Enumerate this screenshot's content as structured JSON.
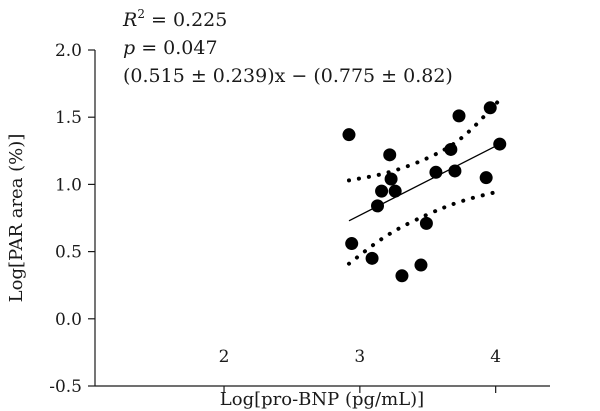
{
  "chart_data": {
    "type": "scatter",
    "xlabel": "Log[pro-BNP (pg/mL)]",
    "ylabel": "Log[PAR area (%)]",
    "xlim": [
      1.05,
      4.4
    ],
    "ylim": [
      -0.5,
      2.0
    ],
    "x_ticks": [
      "2",
      "3",
      "4"
    ],
    "x_tick_values": [
      2,
      3,
      4
    ],
    "y_ticks": [
      "2.0",
      "1.5",
      "1.0",
      "0.5",
      "0.0",
      "-0.5"
    ],
    "y_tick_values": [
      2.0,
      1.5,
      1.0,
      0.5,
      0.0,
      -0.5
    ],
    "annotations": {
      "r2_symbol": "R",
      "r2_superscript": "2",
      "r2_value": " = 0.225",
      "p_symbol": "p",
      "p_value": " = 0.047",
      "equation": "(0.515 ± 0.239)x − (0.775 ± 0.82)"
    },
    "series": [
      {
        "points": [
          {
            "x": 2.92,
            "y": 1.37
          },
          {
            "x": 2.94,
            "y": 0.56
          },
          {
            "x": 3.09,
            "y": 0.45
          },
          {
            "x": 3.13,
            "y": 0.84
          },
          {
            "x": 3.16,
            "y": 0.95
          },
          {
            "x": 3.22,
            "y": 1.22
          },
          {
            "x": 3.23,
            "y": 1.04
          },
          {
            "x": 3.26,
            "y": 0.95
          },
          {
            "x": 3.31,
            "y": 0.32
          },
          {
            "x": 3.45,
            "y": 0.4
          },
          {
            "x": 3.49,
            "y": 0.71
          },
          {
            "x": 3.56,
            "y": 1.09
          },
          {
            "x": 3.67,
            "y": 1.26
          },
          {
            "x": 3.7,
            "y": 1.1
          },
          {
            "x": 3.73,
            "y": 1.51
          },
          {
            "x": 3.93,
            "y": 1.05
          },
          {
            "x": 3.96,
            "y": 1.57
          },
          {
            "x": 4.03,
            "y": 1.3
          }
        ]
      }
    ],
    "fit_line": {
      "slope": 0.515,
      "intercept": -0.775,
      "x_range": [
        2.92,
        4.03
      ]
    },
    "confidence_band": {
      "upper": [
        [
          2.92,
          1.03
        ],
        [
          3.2,
          1.08
        ],
        [
          3.5,
          1.19
        ],
        [
          3.75,
          1.33
        ],
        [
          4.03,
          1.63
        ]
      ],
      "lower": [
        [
          2.92,
          0.41
        ],
        [
          3.2,
          0.63
        ],
        [
          3.5,
          0.78
        ],
        [
          3.75,
          0.88
        ],
        [
          4.03,
          0.95
        ]
      ]
    },
    "grid": false,
    "legend": "none",
    "colors": {
      "marker": "#000000",
      "axis": "#1a1a1a"
    }
  }
}
